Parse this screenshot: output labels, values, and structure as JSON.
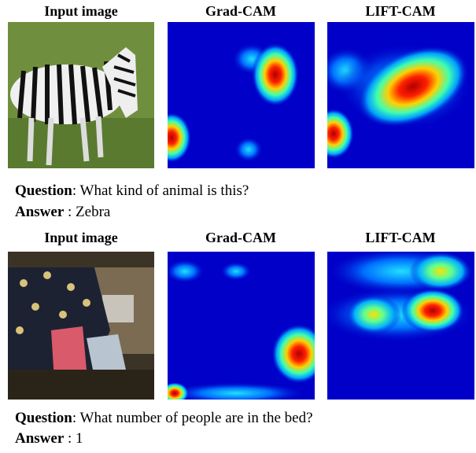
{
  "rows": [
    {
      "headers": [
        "Input image",
        "Grad-CAM",
        "LIFT-CAM"
      ],
      "question_label": "Question",
      "question": ": What kind of animal is this?",
      "answer_label": "Answer",
      "answer": " : Zebra"
    },
    {
      "headers": [
        "Input image",
        "Grad-CAM",
        "LIFT-CAM"
      ],
      "question_label": "Question",
      "question": ": What number of people are in the bed?",
      "answer_label": "Answer",
      "answer": " : 1"
    }
  ]
}
